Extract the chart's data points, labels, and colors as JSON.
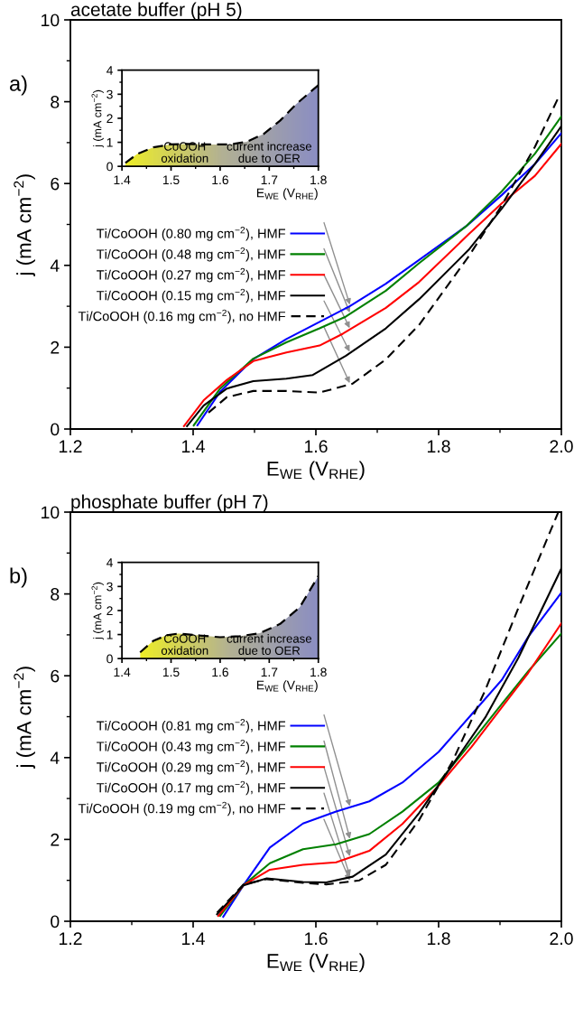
{
  "chart_data": [
    {
      "type": "line",
      "title": "acetate buffer (pH 5)",
      "xlabel": "E$_{WE}$ (V$_{RHE}$)",
      "ylabel": "j (mA cm$^{−2}$)",
      "annotations": [
        "a)"
      ],
      "xlim": [
        1.2,
        2.0
      ],
      "ylim": [
        0,
        10
      ],
      "xticks": [
        1.2,
        1.4,
        1.6,
        1.8,
        {
          "value": 2.0,
          "label": "2.0"
        }
      ],
      "yticks": [
        0,
        2,
        4,
        6,
        8,
        10
      ],
      "legend": "left",
      "series": [
        {
          "name": "Ti/CoOOH (0.80 mg cm$^{−2}$), HMF",
          "color": "#0000ff",
          "line_style": "solid",
          "x": [
            1.407,
            1.444,
            1.498,
            1.552,
            1.606,
            1.655,
            1.714,
            1.768,
            1.846,
            1.903,
            1.957,
            2.0
          ],
          "values": [
            0.09,
            0.91,
            1.71,
            2.2,
            2.62,
            3.0,
            3.55,
            4.13,
            4.97,
            5.72,
            6.48,
            7.23
          ]
        },
        {
          "name": "Ti/CoOOH (0.48 mg cm$^{−2}$), HMF",
          "color": "#008000",
          "line_style": "solid",
          "x": [
            1.401,
            1.444,
            1.498,
            1.552,
            1.606,
            1.649,
            1.714,
            1.768,
            1.846,
            1.903,
            1.957,
            2.0
          ],
          "values": [
            0.09,
            0.99,
            1.72,
            2.12,
            2.46,
            2.75,
            3.38,
            4.05,
            4.97,
            5.81,
            6.73,
            7.64
          ]
        },
        {
          "name": "Ti/CoOOH (0.27 mg cm$^{−2}$), HMF",
          "color": "#ff0000",
          "line_style": "solid",
          "x": [
            1.385,
            1.417,
            1.455,
            1.498,
            1.552,
            1.606,
            1.644,
            1.714,
            1.768,
            1.849,
            1.903,
            1.957,
            2.0
          ],
          "values": [
            0.07,
            0.7,
            1.2,
            1.66,
            1.87,
            2.04,
            2.33,
            2.96,
            3.59,
            4.76,
            5.52,
            6.19,
            6.97
          ]
        },
        {
          "name": "Ti/CoOOH (0.15 mg cm$^{−2}$), HMF",
          "color": "#000000",
          "line_style": "solid",
          "x": [
            1.39,
            1.417,
            1.455,
            1.498,
            1.552,
            1.595,
            1.649,
            1.714,
            1.768,
            1.849,
            1.903,
            1.957,
            2.0
          ],
          "values": [
            0.07,
            0.57,
            0.99,
            1.17,
            1.23,
            1.32,
            1.79,
            2.46,
            3.17,
            4.38,
            5.39,
            6.48,
            7.4
          ]
        },
        {
          "name": "Ti/CoOOH (0.16 mg cm$^{−2}$), no HMF",
          "color": "#000000",
          "line_style": "dashed",
          "x": [
            1.425,
            1.455,
            1.498,
            1.552,
            1.606,
            1.66,
            1.714,
            1.768,
            1.849,
            1.903,
            1.957,
            1.997
          ],
          "values": [
            0.4,
            0.78,
            0.93,
            0.93,
            0.89,
            1.11,
            1.7,
            2.54,
            4.22,
            5.47,
            6.9,
            8.16
          ]
        }
      ]
    },
    {
      "type": "area",
      "xlabel": "E$_{WE}$ (V$_{RHE}$)",
      "ylabel": "j (mA cm$^{−2}$)",
      "annotations": [
        "CoOOH\noxidation",
        "current increase\ndue to OER"
      ],
      "xlim": [
        1.4,
        1.8
      ],
      "ylim": [
        0,
        4
      ],
      "xticks": [
        1.4,
        1.5,
        1.6,
        1.7,
        1.8
      ],
      "yticks": [
        0,
        1,
        2,
        3,
        4
      ],
      "series": [
        {
          "type": "area",
          "color": "#000000",
          "line_style": "dashed",
          "x": [
            1.407,
            1.431,
            1.464,
            1.498,
            1.532,
            1.566,
            1.62,
            1.654,
            1.688,
            1.722,
            1.755,
            1.8
          ],
          "values": [
            0.14,
            0.51,
            0.79,
            0.91,
            0.93,
            0.91,
            0.91,
            1.02,
            1.34,
            1.9,
            2.59,
            3.38
          ]
        }
      ]
    },
    {
      "type": "line",
      "title": "phosphate buffer (pH 7)",
      "xlabel": "E$_{WE}$ (V$_{RHE}$)",
      "ylabel": "j (mA cm$^{−2}$)",
      "annotations": [
        "b)"
      ],
      "xlim": [
        1.2,
        2.0
      ],
      "ylim": [
        0,
        10
      ],
      "xticks": [
        1.2,
        1.4,
        1.6,
        1.8,
        {
          "value": 2.0,
          "label": "2.0"
        }
      ],
      "yticks": [
        0,
        2,
        4,
        6,
        8,
        10
      ],
      "legend": "left",
      "series": [
        {
          "name": "Ti/CoOOH (0.81 mg cm$^{−2}$), HMF",
          "color": "#0000ff",
          "line_style": "solid",
          "x": [
            1.449,
            1.482,
            1.525,
            1.579,
            1.633,
            1.687,
            1.741,
            1.8,
            1.854,
            1.903,
            1.946,
            2.0
          ],
          "values": [
            0.11,
            0.88,
            1.8,
            2.39,
            2.68,
            2.93,
            3.39,
            4.14,
            5.06,
            5.9,
            6.95,
            8.03
          ]
        },
        {
          "name": "Ti/CoOOH (0.43 mg cm$^{−2}$), HMF",
          "color": "#008000",
          "line_style": "solid",
          "x": [
            1.444,
            1.482,
            1.525,
            1.579,
            1.633,
            1.687,
            1.741,
            1.8,
            1.854,
            1.903,
            1.946,
            2.0
          ],
          "values": [
            0.13,
            0.88,
            1.42,
            1.76,
            1.88,
            2.13,
            2.68,
            3.39,
            4.39,
            5.31,
            6.11,
            7.03
          ]
        },
        {
          "name": "Ti/CoOOH (0.29 mg cm$^{−2}$), HMF",
          "color": "#ff0000",
          "line_style": "solid",
          "x": [
            1.441,
            1.482,
            1.525,
            1.579,
            1.633,
            1.687,
            1.741,
            1.8,
            1.854,
            1.903,
            1.946,
            2.0
          ],
          "values": [
            0.13,
            0.88,
            1.26,
            1.38,
            1.44,
            1.72,
            2.38,
            3.31,
            4.27,
            5.23,
            6.07,
            7.28
          ]
        },
        {
          "name": "Ti/CoOOH (0.17 mg cm$^{−2}$), HMF",
          "color": "#000000",
          "line_style": "solid",
          "x": [
            1.439,
            1.482,
            1.52,
            1.579,
            1.617,
            1.66,
            1.714,
            1.768,
            1.822,
            1.876,
            1.93,
            2.0
          ],
          "values": [
            0.17,
            0.88,
            1.05,
            0.96,
            0.95,
            1.09,
            1.63,
            2.64,
            3.81,
            4.98,
            6.44,
            8.62
          ]
        },
        {
          "name": "Ti/CoOOH (0.19 mg cm$^{−2}$), no HMF",
          "color": "#000000",
          "line_style": "dashed",
          "x": [
            1.439,
            1.482,
            1.52,
            1.579,
            1.617,
            1.671,
            1.714,
            1.768,
            1.822,
            1.876,
            1.93,
            1.995
          ],
          "values": [
            0.21,
            0.9,
            1.03,
            0.94,
            0.9,
            1.0,
            1.38,
            2.47,
            3.89,
            5.65,
            7.66,
            10.0
          ]
        }
      ]
    },
    {
      "type": "area",
      "xlabel": "E$_{WE}$ (V$_{RHE}$)",
      "ylabel": "j (mA cm$^{−2}$)",
      "annotations": [
        "CoOOH\noxidation",
        "current increase\ndue to OER"
      ],
      "xlim": [
        1.4,
        1.8
      ],
      "ylim": [
        0,
        4
      ],
      "xticks": [
        1.4,
        1.5,
        1.6,
        1.7,
        1.8
      ],
      "yticks": [
        0,
        1,
        2,
        3,
        4
      ],
      "series": [
        {
          "type": "area",
          "color": "#000000",
          "line_style": "dashed",
          "x": [
            1.437,
            1.464,
            1.491,
            1.515,
            1.552,
            1.6,
            1.64,
            1.681,
            1.722,
            1.762,
            1.8
          ],
          "values": [
            0.26,
            0.74,
            0.97,
            1.04,
            0.97,
            0.89,
            0.93,
            1.06,
            1.44,
            2.13,
            3.43
          ]
        }
      ]
    }
  ]
}
